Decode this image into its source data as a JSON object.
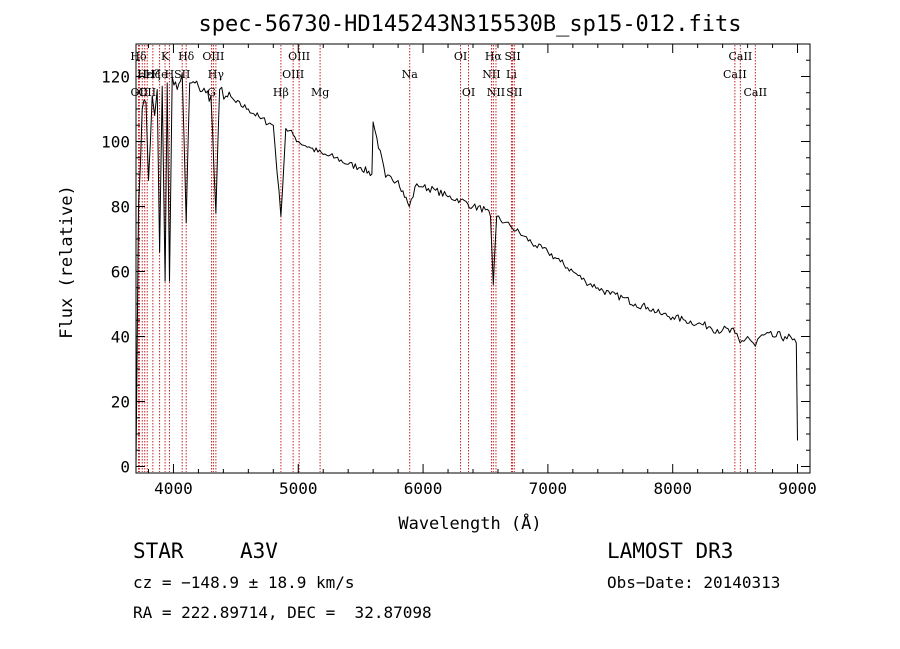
{
  "chart_data": {
    "type": "line",
    "title": "spec-56730-HD145243N315530B_sp15-012.fits",
    "xlabel": "Wavelength (Å)",
    "ylabel": "Flux (relative)",
    "xlim": [
      3700,
      9100
    ],
    "ylim": [
      -2,
      130
    ],
    "xticks": [
      4000,
      5000,
      6000,
      7000,
      8000,
      9000
    ],
    "xtick_labels": [
      "4000",
      "5000",
      "6000",
      "7000",
      "8000",
      "9000"
    ],
    "yticks": [
      0,
      20,
      40,
      60,
      80,
      100,
      120
    ],
    "ytick_labels": [
      "0",
      "20",
      "40",
      "60",
      "80",
      "100",
      "120"
    ],
    "grid": false,
    "series": [
      {
        "name": "spectrum",
        "x": [
          3700,
          3720,
          3750,
          3780,
          3800,
          3830,
          3850,
          3870,
          3889,
          3910,
          3933,
          3950,
          3968,
          3990,
          4030,
          4070,
          4102,
          4130,
          4200,
          4260,
          4300,
          4340,
          4370,
          4420,
          4500,
          4600,
          4700,
          4800,
          4861,
          4900,
          4960,
          5000,
          5100,
          5200,
          5300,
          5400,
          5500,
          5590,
          5600,
          5700,
          5800,
          5890,
          5950,
          6000,
          6100,
          6200,
          6300,
          6400,
          6500,
          6540,
          6563,
          6590,
          6650,
          6700,
          6800,
          6900,
          7000,
          7100,
          7200,
          7300,
          7400,
          7500,
          7600,
          7700,
          7800,
          7900,
          8000,
          8100,
          8200,
          8300,
          8400,
          8500,
          8540,
          8600,
          8662,
          8700,
          8800,
          8900,
          8960,
          8990,
          9000
        ],
        "y": [
          0,
          80,
          110,
          112,
          88,
          114,
          108,
          116,
          66,
          117,
          57,
          118,
          57,
          120,
          116,
          121,
          75,
          118,
          117,
          115,
          114,
          78,
          116,
          114,
          112,
          110,
          107,
          105,
          77,
          104,
          102,
          100,
          98,
          96,
          95,
          93,
          92,
          90,
          106,
          89,
          88,
          80,
          87,
          86,
          85,
          83,
          82,
          80,
          79,
          77,
          56,
          77,
          75,
          74,
          71,
          68,
          66,
          63,
          60,
          57,
          55,
          53,
          52,
          50,
          49,
          47,
          46,
          45,
          44,
          43,
          42,
          41,
          38,
          40,
          37,
          40,
          40,
          40,
          39,
          38,
          8
        ]
      }
    ],
    "lines": [
      {
        "label": "Hδ",
        "x": 3720,
        "row": 0
      },
      {
        "label": "OII",
        "x": 3727,
        "row": 2
      },
      {
        "label": "H",
        "x": 3750,
        "row": 1
      },
      {
        "label": "Hε",
        "x": 3770,
        "row": 1
      },
      {
        "label": "OII",
        "x": 3790,
        "row": 2
      },
      {
        "label": "Hζ",
        "x": 3835,
        "row": 1
      },
      {
        "label": "He",
        "x": 3889,
        "row": 1
      },
      {
        "label": "K",
        "x": 3933,
        "row": 0
      },
      {
        "label": "H",
        "x": 3968,
        "row": 1
      },
      {
        "label": "SII",
        "x": 4070,
        "row": 1
      },
      {
        "label": "Hδ",
        "x": 4102,
        "row": 0
      },
      {
        "label": "G",
        "x": 4305,
        "row": 2
      },
      {
        "label": "OIII",
        "x": 4320,
        "row": 0
      },
      {
        "label": "Hγ",
        "x": 4340,
        "row": 1
      },
      {
        "label": "Hβ",
        "x": 4861,
        "row": 2
      },
      {
        "label": "OIII",
        "x": 4959,
        "row": 1
      },
      {
        "label": "OIII",
        "x": 5007,
        "row": 0
      },
      {
        "label": "Mg",
        "x": 5175,
        "row": 2
      },
      {
        "label": "Na",
        "x": 5893,
        "row": 1
      },
      {
        "label": "OI",
        "x": 6300,
        "row": 0
      },
      {
        "label": "OI",
        "x": 6364,
        "row": 2
      },
      {
        "label": "NII",
        "x": 6548,
        "row": 1
      },
      {
        "label": "Hα",
        "x": 6563,
        "row": 0
      },
      {
        "label": "NII",
        "x": 6584,
        "row": 2
      },
      {
        "label": "Li",
        "x": 6708,
        "row": 1
      },
      {
        "label": "SII",
        "x": 6717,
        "row": 0
      },
      {
        "label": "SII",
        "x": 6731,
        "row": 2
      },
      {
        "label": "CaII",
        "x": 8498,
        "row": 1
      },
      {
        "label": "CaII",
        "x": 8542,
        "row": 0
      },
      {
        "label": "CaII",
        "x": 8662,
        "row": 2
      }
    ]
  },
  "info": {
    "object_class": "STAR",
    "subclass": "A3V",
    "survey": "LAMOST DR3",
    "cz": "cz = −148.9 ± 18.9 km/s",
    "obs_date": "Obs−Date: 20140313",
    "radec": "RA = 222.89714, DEC =  32.87098"
  }
}
